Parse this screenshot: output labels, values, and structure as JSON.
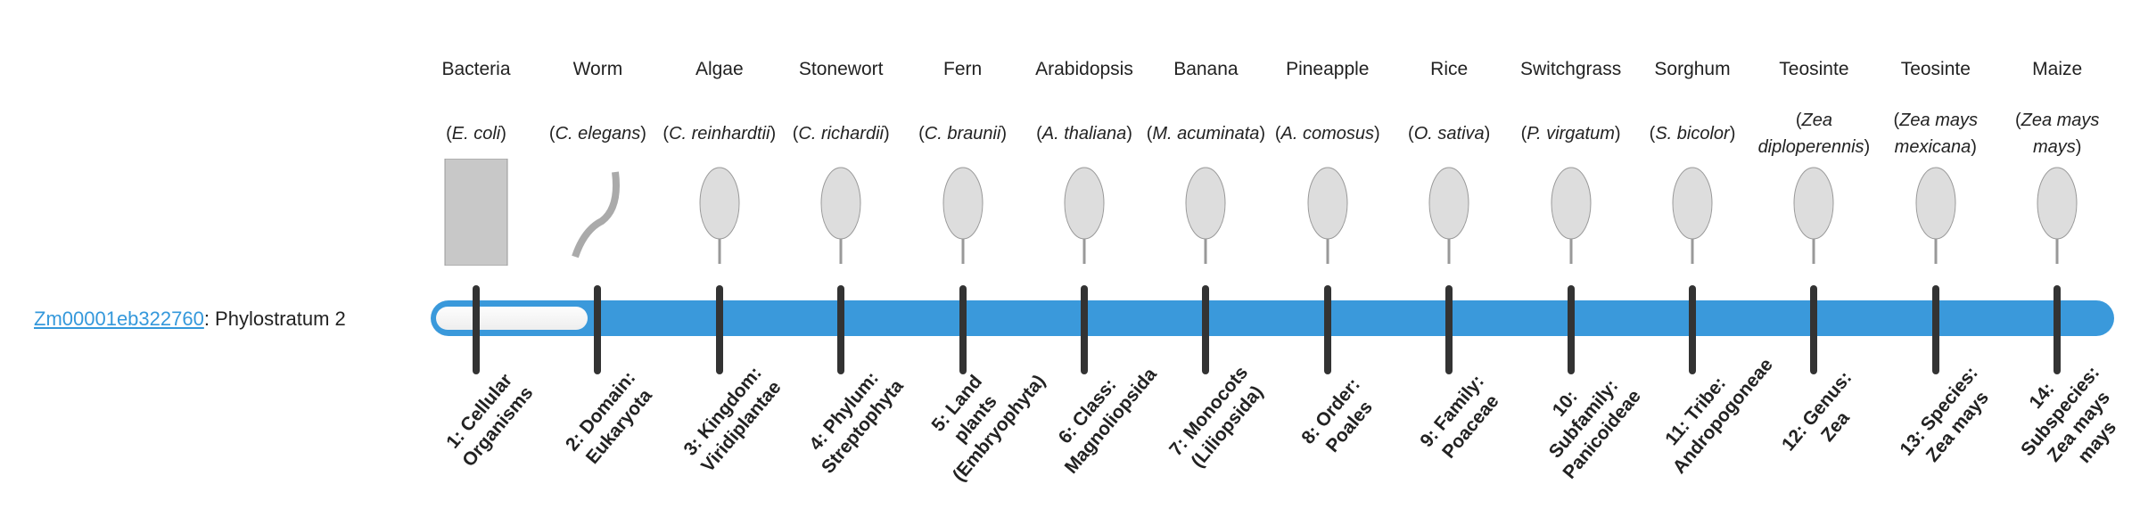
{
  "gene": {
    "id": "Zm00001eb322760",
    "suffix": ": Phylostratum 2",
    "phylostratum": 2
  },
  "colors": {
    "bar": "#3a99db",
    "link": "#3498db",
    "tick": "#333333"
  },
  "organisms": [
    {
      "common": "Bacteria",
      "sci": "E. coli",
      "icon": "bacteria-illustration"
    },
    {
      "common": "Worm",
      "sci": "C. elegans",
      "icon": "worm-illustration"
    },
    {
      "common": "Algae",
      "sci": "C. reinhardtii",
      "icon": "algae-illustration"
    },
    {
      "common": "Stonewort",
      "sci": "C. richardii",
      "icon": "stonewort-illustration"
    },
    {
      "common": "Fern",
      "sci": "C. braunii",
      "icon": "fern-illustration"
    },
    {
      "common": "Arabidopsis",
      "sci": "A. thaliana",
      "icon": "arabidopsis-illustration"
    },
    {
      "common": "Banana",
      "sci": "M. acuminata",
      "icon": "banana-illustration"
    },
    {
      "common": "Pineapple",
      "sci": "A. comosus",
      "icon": "pineapple-illustration"
    },
    {
      "common": "Rice",
      "sci": "O. sativa",
      "icon": "rice-illustration"
    },
    {
      "common": "Switchgrass",
      "sci": "P. virgatum",
      "icon": "switchgrass-illustration"
    },
    {
      "common": "Sorghum",
      "sci": "S. bicolor",
      "icon": "sorghum-illustration"
    },
    {
      "common": "Teosinte",
      "sci": "Zea diploperennis",
      "icon": "teosinte-illustration"
    },
    {
      "common": "Teosinte",
      "sci": "Zea mays mexicana",
      "icon": "teosinte-illustration"
    },
    {
      "common": "Maize",
      "sci": "Zea mays mays",
      "icon": "maize-illustration"
    }
  ],
  "strata": [
    "1: Cellular Organisms",
    "2: Domain: Eukaryota",
    "3: Kingdom: Viridiplantae",
    "4: Phylum: Streptophyta",
    "5: Land plants (Embryophyta)",
    "6: Class: Magnoliopsida",
    "7: Monocots (Liliopsida)",
    "8: Order: Poales",
    "9: Family: Poaceae",
    "10: Subfamily: Panicoideae",
    "11: Tribe: Andropogoneae",
    "12: Genus: Zea",
    "13: Species: Zea mays",
    "14: Subspecies: Zea mays mays"
  ]
}
